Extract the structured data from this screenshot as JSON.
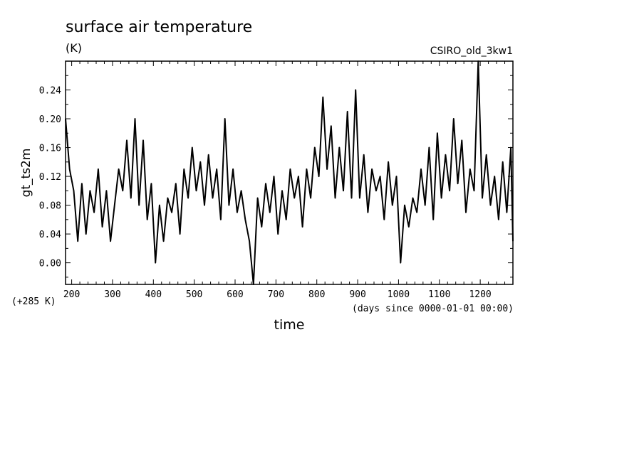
{
  "chart_data": {
    "type": "line",
    "title": "surface air temperature",
    "units": "(K)",
    "source_label": "CSIRO_old_3kw1",
    "ylabel": "gt_ts2m",
    "xlabel": "time",
    "y_offset_label": "(+285 K)",
    "x_units_label": "(days since 0000-01-01 00:00)",
    "xlim": [
      185,
      1280
    ],
    "ylim": [
      -0.03,
      0.28
    ],
    "x_ticks": [
      200,
      300,
      400,
      500,
      600,
      700,
      800,
      900,
      1000,
      1100,
      1200
    ],
    "x_tick_labels": [
      "200",
      "300",
      "400",
      "500",
      "600",
      "700",
      "800",
      "900",
      "1000",
      "1100",
      "1200"
    ],
    "y_ticks": [
      0.0,
      0.04,
      0.08,
      0.12,
      0.16,
      0.2,
      0.24
    ],
    "y_tick_labels": [
      "0.00",
      "0.04",
      "0.08",
      "0.12",
      "0.16",
      "0.20",
      "0.24"
    ],
    "series": [
      {
        "x": [
          185,
          195,
          205,
          215,
          225,
          235,
          245,
          255,
          265,
          275,
          285,
          295,
          305,
          315,
          325,
          335,
          345,
          355,
          365,
          375,
          385,
          395,
          405,
          415,
          425,
          435,
          445,
          455,
          465,
          475,
          485,
          495,
          505,
          515,
          525,
          535,
          545,
          555,
          565,
          575,
          585,
          595,
          605,
          615,
          625,
          635,
          645,
          655,
          665,
          675,
          685,
          695,
          705,
          715,
          725,
          735,
          745,
          755,
          765,
          775,
          785,
          795,
          805,
          815,
          825,
          835,
          845,
          855,
          865,
          875,
          885,
          895,
          905,
          915,
          925,
          935,
          945,
          955,
          965,
          975,
          985,
          995,
          1005,
          1015,
          1025,
          1035,
          1045,
          1055,
          1065,
          1075,
          1085,
          1095,
          1105,
          1115,
          1125,
          1135,
          1145,
          1155,
          1165,
          1175,
          1185,
          1195,
          1205,
          1215,
          1225,
          1235,
          1245,
          1255,
          1265,
          1275,
          1280
        ],
        "y": [
          0.2,
          0.13,
          0.1,
          0.03,
          0.11,
          0.04,
          0.1,
          0.07,
          0.13,
          0.05,
          0.1,
          0.03,
          0.08,
          0.13,
          0.1,
          0.17,
          0.09,
          0.2,
          0.08,
          0.17,
          0.06,
          0.11,
          0.0,
          0.08,
          0.03,
          0.09,
          0.07,
          0.11,
          0.04,
          0.13,
          0.09,
          0.16,
          0.1,
          0.14,
          0.08,
          0.15,
          0.09,
          0.13,
          0.06,
          0.2,
          0.08,
          0.13,
          0.07,
          0.1,
          0.06,
          0.03,
          -0.03,
          0.09,
          0.05,
          0.11,
          0.07,
          0.12,
          0.04,
          0.1,
          0.06,
          0.13,
          0.09,
          0.12,
          0.05,
          0.13,
          0.09,
          0.16,
          0.12,
          0.23,
          0.13,
          0.19,
          0.09,
          0.16,
          0.1,
          0.21,
          0.09,
          0.24,
          0.09,
          0.15,
          0.07,
          0.13,
          0.1,
          0.12,
          0.06,
          0.14,
          0.08,
          0.12,
          0.0,
          0.08,
          0.05,
          0.09,
          0.07,
          0.13,
          0.08,
          0.16,
          0.06,
          0.18,
          0.09,
          0.15,
          0.1,
          0.2,
          0.11,
          0.17,
          0.07,
          0.13,
          0.1,
          0.28,
          0.09,
          0.15,
          0.08,
          0.12,
          0.06,
          0.14,
          0.07,
          0.16,
          0.03
        ]
      }
    ]
  }
}
